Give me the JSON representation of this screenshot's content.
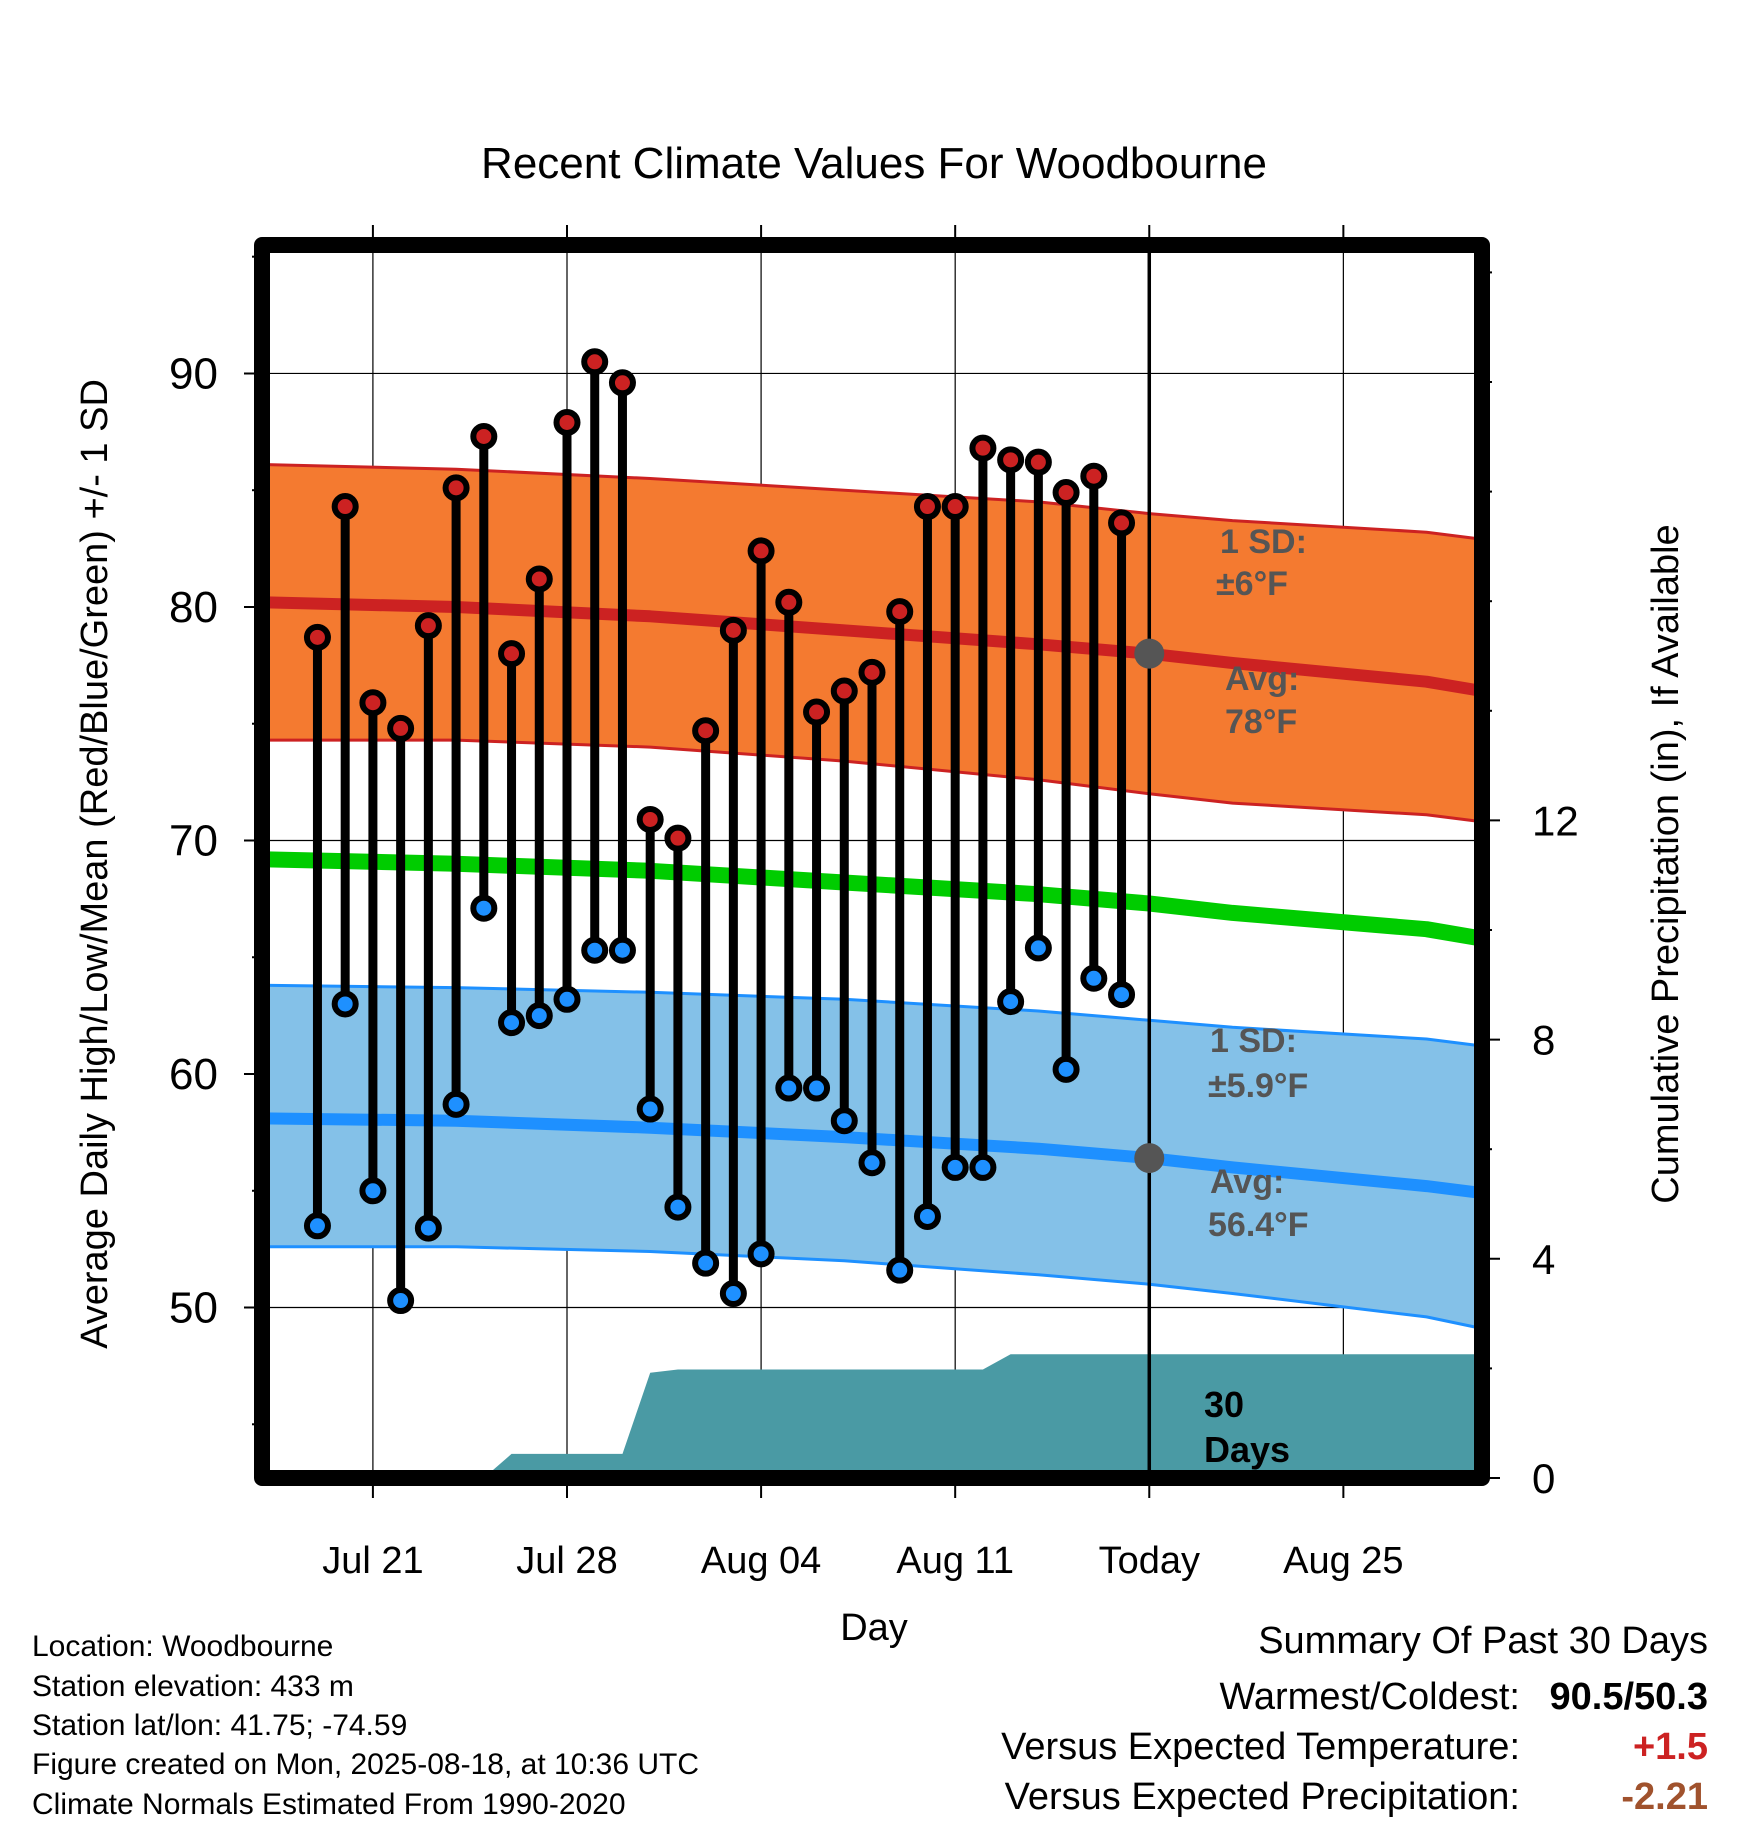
{
  "chart_data": {
    "type": "line",
    "title": "Recent Climate Values For Woodbourne",
    "xlabel": "Day",
    "ylabel": "Average Daily High/Low/Mean (Red/Blue/Green) +/- 1 SD",
    "ylabel_right": "Cumulative Precipitation (in), If Available",
    "ylim": [
      42.7,
      95.5
    ],
    "y_ticks": [
      50,
      60,
      70,
      80,
      90
    ],
    "xlim": [
      "2025-07-17",
      "2025-08-30"
    ],
    "x_ticks": [
      {
        "date": "2025-07-21",
        "label": "Jul 21"
      },
      {
        "date": "2025-07-28",
        "label": "Jul 28"
      },
      {
        "date": "2025-08-04",
        "label": "Aug 04"
      },
      {
        "date": "2025-08-11",
        "label": "Aug 11"
      },
      {
        "date": "2025-08-18",
        "label": "Today"
      },
      {
        "date": "2025-08-25",
        "label": "Aug 25"
      }
    ],
    "y2lim": [
      0,
      22.5
    ],
    "y2_ticks": [
      0,
      4,
      8,
      12
    ],
    "grid": true,
    "colors": {
      "high": "#cc2222",
      "low": "#1e90ff",
      "mean": "#00cc00",
      "high_band": "#f47a30",
      "low_band": "#84c1e8",
      "precip": "#4a9aa4",
      "today_marker": "#555555",
      "annotation": "#555555",
      "positive": "#cc2222",
      "negative": "#a0522d"
    },
    "daily": {
      "dates": [
        "2025-07-19",
        "2025-07-20",
        "2025-07-21",
        "2025-07-22",
        "2025-07-23",
        "2025-07-24",
        "2025-07-25",
        "2025-07-26",
        "2025-07-27",
        "2025-07-28",
        "2025-07-29",
        "2025-07-30",
        "2025-07-31",
        "2025-08-01",
        "2025-08-02",
        "2025-08-03",
        "2025-08-04",
        "2025-08-05",
        "2025-08-06",
        "2025-08-07",
        "2025-08-08",
        "2025-08-09",
        "2025-08-10",
        "2025-08-11",
        "2025-08-12",
        "2025-08-13",
        "2025-08-14",
        "2025-08-15",
        "2025-08-16",
        "2025-08-17"
      ],
      "highs": [
        78.7,
        84.3,
        75.9,
        74.8,
        79.2,
        85.1,
        87.3,
        78.0,
        81.2,
        87.9,
        90.5,
        89.6,
        70.9,
        70.1,
        74.7,
        79.0,
        82.4,
        80.2,
        75.5,
        76.4,
        77.2,
        79.8,
        84.3,
        84.3,
        86.8,
        86.3,
        86.2,
        84.9,
        85.6,
        83.6
      ],
      "lows": [
        53.5,
        63.0,
        55.0,
        50.3,
        53.4,
        58.7,
        67.1,
        62.2,
        62.5,
        63.2,
        65.3,
        65.3,
        58.5,
        54.3,
        51.9,
        50.6,
        52.3,
        59.4,
        59.4,
        58.0,
        56.2,
        51.6,
        53.9,
        56.0,
        56.0,
        63.1,
        65.4,
        60.2,
        64.1,
        63.4
      ]
    },
    "normals": {
      "dates": [
        "2025-07-17",
        "2025-07-24",
        "2025-07-31",
        "2025-08-07",
        "2025-08-14",
        "2025-08-18",
        "2025-08-21",
        "2025-08-28",
        "2025-08-30"
      ],
      "high_avg": [
        80.2,
        80.0,
        79.6,
        79.0,
        78.4,
        78.0,
        77.6,
        76.8,
        76.4
      ],
      "high_upper": [
        86.1,
        85.9,
        85.5,
        85.0,
        84.5,
        84.0,
        83.7,
        83.2,
        82.9
      ],
      "high_lower": [
        74.3,
        74.3,
        74.0,
        73.4,
        72.6,
        72.0,
        71.6,
        71.1,
        70.8
      ],
      "mean_avg": [
        69.2,
        69.0,
        68.7,
        68.2,
        67.7,
        67.3,
        66.9,
        66.2,
        65.8
      ],
      "low_avg": [
        58.1,
        58.0,
        57.7,
        57.3,
        56.8,
        56.4,
        56.0,
        55.2,
        54.9
      ],
      "low_upper": [
        63.8,
        63.7,
        63.5,
        63.2,
        62.7,
        62.3,
        62.0,
        61.5,
        61.2
      ],
      "low_lower": [
        52.6,
        52.6,
        52.4,
        52.0,
        51.4,
        51.0,
        50.6,
        49.6,
        49.1
      ]
    },
    "precip_cumulative": {
      "dates": [
        "2025-07-17",
        "2025-07-25",
        "2025-07-26",
        "2025-07-29",
        "2025-07-30",
        "2025-07-31",
        "2025-08-01",
        "2025-08-02",
        "2025-08-12",
        "2025-08-13",
        "2025-08-30"
      ],
      "values": [
        0.0,
        0.0,
        0.44,
        0.44,
        0.44,
        1.92,
        1.98,
        1.98,
        1.98,
        2.26,
        2.26
      ]
    },
    "annotations": {
      "high_sd": "1 SD:",
      "high_sd_value": "±6°F",
      "high_avg": "Avg:",
      "high_avg_value": "78°F",
      "low_sd": "1 SD:",
      "low_sd_value": "±5.9°F",
      "low_avg": "Avg:",
      "low_avg_value": "56.4°F",
      "days_number": "30",
      "days_word": "Days"
    }
  },
  "footer": {
    "location": "Location: Woodbourne",
    "elevation": "Station elevation: 433 m",
    "latlon": "Station lat/lon: 41.75; -74.59",
    "created": "Figure created on Mon, 2025-08-18, at 10:36 UTC",
    "normals": "Climate Normals Estimated From 1990-2020"
  },
  "summary": {
    "title": "Summary Of Past 30 Days",
    "warm_cold_label": "Warmest/Coldest:",
    "warm_cold_value": "90.5/50.3",
    "temp_label": "Versus Expected Temperature:",
    "temp_value": "+1.5",
    "precip_label": "Versus Expected Precipitation:",
    "precip_value": "-2.21"
  }
}
